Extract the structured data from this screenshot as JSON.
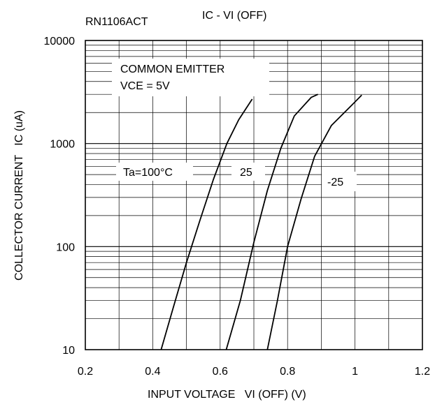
{
  "chart_data": {
    "type": "line",
    "part_number": "RN1106ACT",
    "title": "IC - VI (OFF)",
    "xlabel": "INPUT VOLTAGE   VI (OFF) (V)",
    "ylabel": "COLLECTOR CURRENT   IC (uA)",
    "xlim": [
      0.2,
      1.2
    ],
    "ylim": [
      10,
      10000
    ],
    "y_scale": "log",
    "grid": true,
    "x_ticks": [
      "0.2",
      "0.4",
      "0.6",
      "0.8",
      "1",
      "1.2"
    ],
    "y_ticks": [
      "10",
      "100",
      "1000",
      "10000"
    ],
    "annotations": {
      "condition_1": "COMMON EMITTER",
      "condition_2": "VCE = 5V"
    },
    "series": [
      {
        "name": "Ta=100°C",
        "x": [
          0.425,
          0.46,
          0.5,
          0.54,
          0.58,
          0.62,
          0.655,
          0.695
        ],
        "y": [
          10,
          25,
          70,
          180,
          450,
          1000,
          1700,
          2700
        ]
      },
      {
        "name": "25",
        "x": [
          0.618,
          0.66,
          0.7,
          0.74,
          0.78,
          0.82,
          0.87,
          0.89
        ],
        "y": [
          10,
          30,
          110,
          350,
          900,
          1850,
          2800,
          3000
        ]
      },
      {
        "name": "-25",
        "x": [
          0.74,
          0.77,
          0.8,
          0.84,
          0.88,
          0.93,
          0.99,
          1.02
        ],
        "y": [
          10,
          30,
          100,
          290,
          750,
          1500,
          2350,
          2950
        ]
      }
    ]
  }
}
